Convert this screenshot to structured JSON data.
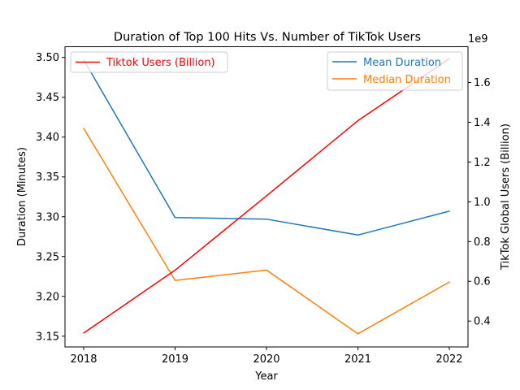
{
  "chart_data": {
    "type": "line",
    "title": "Duration of Top 100 Hits Vs. Number of TikTok Users",
    "xlabel": "Year",
    "ylabel_left": "Duration (Minutes)",
    "ylabel_right": "TikTok Global Users (Billion)",
    "right_axis_offset_text": "1e9",
    "x": [
      "2018",
      "2019",
      "2020",
      "2021",
      "2022"
    ],
    "ylim_left": [
      3.1365,
      3.5135
    ],
    "ylim_right": [
      270000000,
      1780000000
    ],
    "left_ticks": [
      "3.15",
      "3.20",
      "3.25",
      "3.30",
      "3.35",
      "3.40",
      "3.45",
      "3.50"
    ],
    "left_tick_values": [
      3.15,
      3.2,
      3.25,
      3.3,
      3.35,
      3.4,
      3.45,
      3.5
    ],
    "right_ticks": [
      "0.4",
      "0.6",
      "0.8",
      "1.0",
      "1.2",
      "1.4",
      "1.6"
    ],
    "right_tick_values": [
      400000000,
      600000000,
      800000000,
      1000000000,
      1200000000,
      1400000000,
      1600000000
    ],
    "series": [
      {
        "name": "Mean Duration",
        "axis": "left",
        "color": "#1f77b4",
        "values": [
          3.497,
          3.299,
          3.297,
          3.277,
          3.307
        ]
      },
      {
        "name": "Median Duration",
        "axis": "left",
        "color": "#ff7f0e",
        "values": [
          3.411,
          3.22,
          3.233,
          3.153,
          3.218
        ]
      },
      {
        "name": "Tiktok Users (Billion)",
        "axis": "right",
        "color": "#ff0000",
        "values": [
          340000000,
          656000000,
          1030000000,
          1408000000,
          1720000000
        ]
      }
    ],
    "legend_left": {
      "placement": "upper-left",
      "entries": [
        "Tiktok Users (Billion)"
      ]
    },
    "legend_right": {
      "placement": "upper-right",
      "entries": [
        "Mean Duration",
        "Median Duration"
      ]
    },
    "grid": false
  }
}
